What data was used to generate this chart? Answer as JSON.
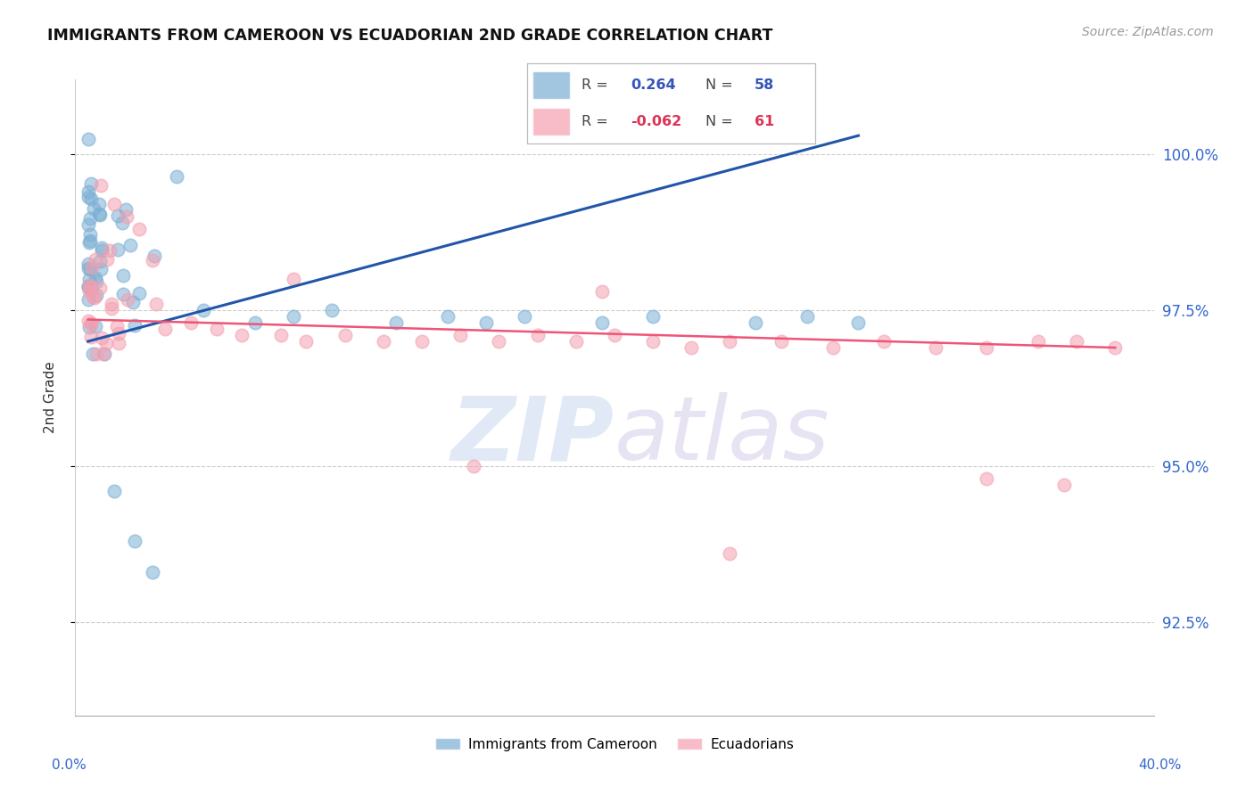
{
  "title": "IMMIGRANTS FROM CAMEROON VS ECUADORIAN 2ND GRADE CORRELATION CHART",
  "source": "Source: ZipAtlas.com",
  "ylabel": "2nd Grade",
  "ytick_values": [
    92.5,
    95.0,
    97.5,
    100.0
  ],
  "ylim": [
    91.0,
    101.2
  ],
  "xlim": [
    -0.5,
    41.5
  ],
  "legend_blue_r": "0.264",
  "legend_blue_n": "58",
  "legend_pink_r": "-0.062",
  "legend_pink_n": "61",
  "blue_color": "#7BAfd4",
  "pink_color": "#F4A0B0",
  "blue_line_color": "#2255AA",
  "pink_line_color": "#EE5577",
  "watermark_color": "#D8E4F0",
  "watermark_zip_color": "#C5D5E8",
  "watermark_atlas_color": "#D0C8E8"
}
